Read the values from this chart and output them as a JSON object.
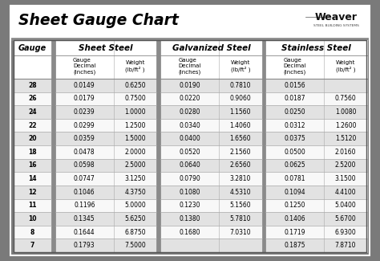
{
  "title": "Sheet Gauge Chart",
  "weaver": "Weaver",
  "bg_outer": "#7a7a7a",
  "bg_white": "#ffffff",
  "bg_title": "#ffffff",
  "bg_header_row": "#ffffff",
  "bg_row_odd": "#e2e2e2",
  "bg_row_even": "#f8f8f8",
  "bg_section_sep": "#8a8a8a",
  "border_color": "#888888",
  "thick_sep": "#777777",
  "gauge_col": [
    28,
    26,
    24,
    22,
    20,
    18,
    16,
    14,
    12,
    11,
    10,
    8,
    7
  ],
  "sheet_steel_decimal": [
    "0.0149",
    "0.0179",
    "0.0239",
    "0.0299",
    "0.0359",
    "0.0478",
    "0.0598",
    "0.0747",
    "0.1046",
    "0.1196",
    "0.1345",
    "0.1644",
    "0.1793"
  ],
  "sheet_steel_weight": [
    "0.6250",
    "0.7500",
    "1.0000",
    "1.2500",
    "1.5000",
    "2.0000",
    "2.5000",
    "3.1250",
    "4.3750",
    "5.0000",
    "5.6250",
    "6.8750",
    "7.5000"
  ],
  "galv_steel_decimal": [
    "0.0190",
    "0.0220",
    "0.0280",
    "0.0340",
    "0.0400",
    "0.0520",
    "0.0640",
    "0.0790",
    "0.1080",
    "0.1230",
    "0.1380",
    "0.1680",
    ""
  ],
  "galv_steel_weight": [
    "0.7810",
    "0.9060",
    "1.1560",
    "1.4060",
    "1.6560",
    "2.1560",
    "2.6560",
    "3.2810",
    "4.5310",
    "5.1560",
    "5.7810",
    "7.0310",
    ""
  ],
  "stainless_decimal": [
    "0.0156",
    "0.0187",
    "0.0250",
    "0.0312",
    "0.0375",
    "0.0500",
    "0.0625",
    "0.0781",
    "0.1094",
    "0.1250",
    "0.1406",
    "0.1719",
    "0.1875"
  ],
  "stainless_weight": [
    "",
    "0.7560",
    "1.0080",
    "1.2600",
    "1.5120",
    "2.0160",
    "2.5200",
    "3.1500",
    "4.4100",
    "5.0400",
    "5.6700",
    "6.9300",
    "7.8710"
  ],
  "section_headers": [
    "Sheet Steel",
    "Galvanized Steel",
    "Stainless Steel"
  ]
}
